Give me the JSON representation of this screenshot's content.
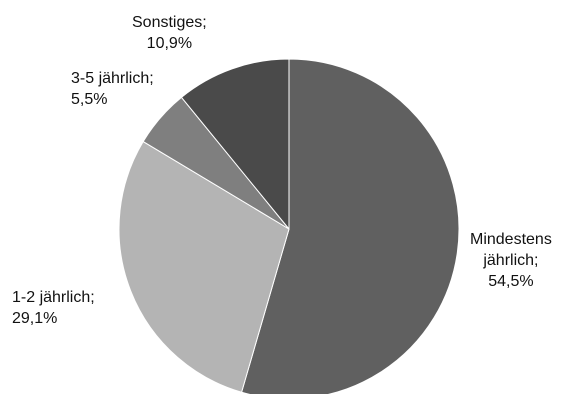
{
  "chart_data": {
    "type": "pie",
    "start_angle_deg": 0,
    "direction": "clockwise",
    "slices": [
      {
        "label": "Mindestens jährlich",
        "value": 54.5,
        "value_label": "54,5%",
        "label_lines": [
          "Mindestens",
          "jährlich;",
          "54,5%"
        ],
        "color": "#606060"
      },
      {
        "label": "1-2 jährlich",
        "value": 29.1,
        "value_label": "29,1%",
        "label_lines": [
          "1-2 jährlich;",
          "29,1%"
        ],
        "color": "#b4b4b4"
      },
      {
        "label": "3-5 jährlich",
        "value": 5.5,
        "value_label": "5,5%",
        "label_lines": [
          "3-5 jährlich;",
          "5,5%"
        ],
        "color": "#7f7f7f"
      },
      {
        "label": "Sonstiges",
        "value": 10.9,
        "value_label": "10,9%",
        "label_lines": [
          "Sonstiges;",
          "10,9%"
        ],
        "color": "#4a4a4a"
      }
    ]
  }
}
